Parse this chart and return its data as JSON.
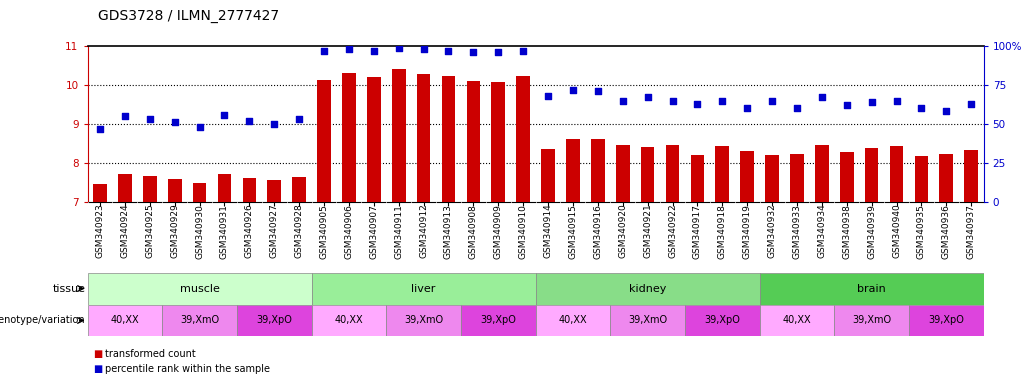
{
  "title": "GDS3728 / ILMN_2777427",
  "samples": [
    "GSM340923",
    "GSM340924",
    "GSM340925",
    "GSM340929",
    "GSM340930",
    "GSM340931",
    "GSM340926",
    "GSM340927",
    "GSM340928",
    "GSM340905",
    "GSM340906",
    "GSM340907",
    "GSM340911",
    "GSM340912",
    "GSM340913",
    "GSM340908",
    "GSM340909",
    "GSM340910",
    "GSM340914",
    "GSM340915",
    "GSM340916",
    "GSM340920",
    "GSM340921",
    "GSM340922",
    "GSM340917",
    "GSM340918",
    "GSM340919",
    "GSM340932",
    "GSM340933",
    "GSM340934",
    "GSM340938",
    "GSM340939",
    "GSM340940",
    "GSM340935",
    "GSM340936",
    "GSM340937"
  ],
  "bar_values": [
    7.45,
    7.7,
    7.65,
    7.58,
    7.48,
    7.72,
    7.6,
    7.55,
    7.62,
    10.12,
    10.3,
    10.2,
    10.42,
    10.28,
    10.22,
    10.1,
    10.08,
    10.22,
    8.35,
    8.62,
    8.6,
    8.45,
    8.4,
    8.45,
    8.2,
    8.42,
    8.3,
    8.2,
    8.22,
    8.45,
    8.28,
    8.38,
    8.42,
    8.18,
    8.22,
    8.32
  ],
  "dot_values": [
    47,
    55,
    53,
    51,
    48,
    56,
    52,
    50,
    53,
    97,
    98,
    97,
    99,
    98,
    97,
    96,
    96,
    97,
    68,
    72,
    71,
    65,
    67,
    65,
    63,
    65,
    60,
    65,
    60,
    67,
    62,
    64,
    65,
    60,
    58,
    63
  ],
  "ylim_left": [
    7,
    11
  ],
  "ylim_right": [
    0,
    100
  ],
  "yticks_left": [
    7,
    8,
    9,
    10,
    11
  ],
  "yticks_right": [
    0,
    25,
    50,
    75,
    100
  ],
  "bar_color": "#cc0000",
  "dot_color": "#0000cc",
  "tissues": [
    {
      "label": "muscle",
      "start": 0,
      "end": 9,
      "color": "#ccffcc"
    },
    {
      "label": "liver",
      "start": 9,
      "end": 18,
      "color": "#99ee99"
    },
    {
      "label": "kidney",
      "start": 18,
      "end": 27,
      "color": "#88dd88"
    },
    {
      "label": "brain",
      "start": 27,
      "end": 36,
      "color": "#55cc55"
    }
  ],
  "genotypes": [
    {
      "label": "40,XX",
      "start": 0,
      "end": 3,
      "color": "#ffaaff"
    },
    {
      "label": "39,XmO",
      "start": 3,
      "end": 6,
      "color": "#ee88ee"
    },
    {
      "label": "39,XpO",
      "start": 6,
      "end": 9,
      "color": "#dd44dd"
    },
    {
      "label": "40,XX",
      "start": 9,
      "end": 12,
      "color": "#ffaaff"
    },
    {
      "label": "39,XmO",
      "start": 12,
      "end": 15,
      "color": "#ee88ee"
    },
    {
      "label": "39,XpO",
      "start": 15,
      "end": 18,
      "color": "#dd44dd"
    },
    {
      "label": "40,XX",
      "start": 18,
      "end": 21,
      "color": "#ffaaff"
    },
    {
      "label": "39,XmO",
      "start": 21,
      "end": 24,
      "color": "#ee88ee"
    },
    {
      "label": "39,XpO",
      "start": 24,
      "end": 27,
      "color": "#dd44dd"
    },
    {
      "label": "40,XX",
      "start": 27,
      "end": 30,
      "color": "#ffaaff"
    },
    {
      "label": "39,XmO",
      "start": 30,
      "end": 33,
      "color": "#ee88ee"
    },
    {
      "label": "39,XpO",
      "start": 33,
      "end": 36,
      "color": "#dd44dd"
    }
  ],
  "legend_items": [
    {
      "label": "transformed count",
      "color": "#cc0000"
    },
    {
      "label": "percentile rank within the sample",
      "color": "#0000cc"
    }
  ],
  "background_color": "#ffffff",
  "title_fontsize": 10,
  "tick_fontsize": 6.5,
  "label_fontsize": 8
}
